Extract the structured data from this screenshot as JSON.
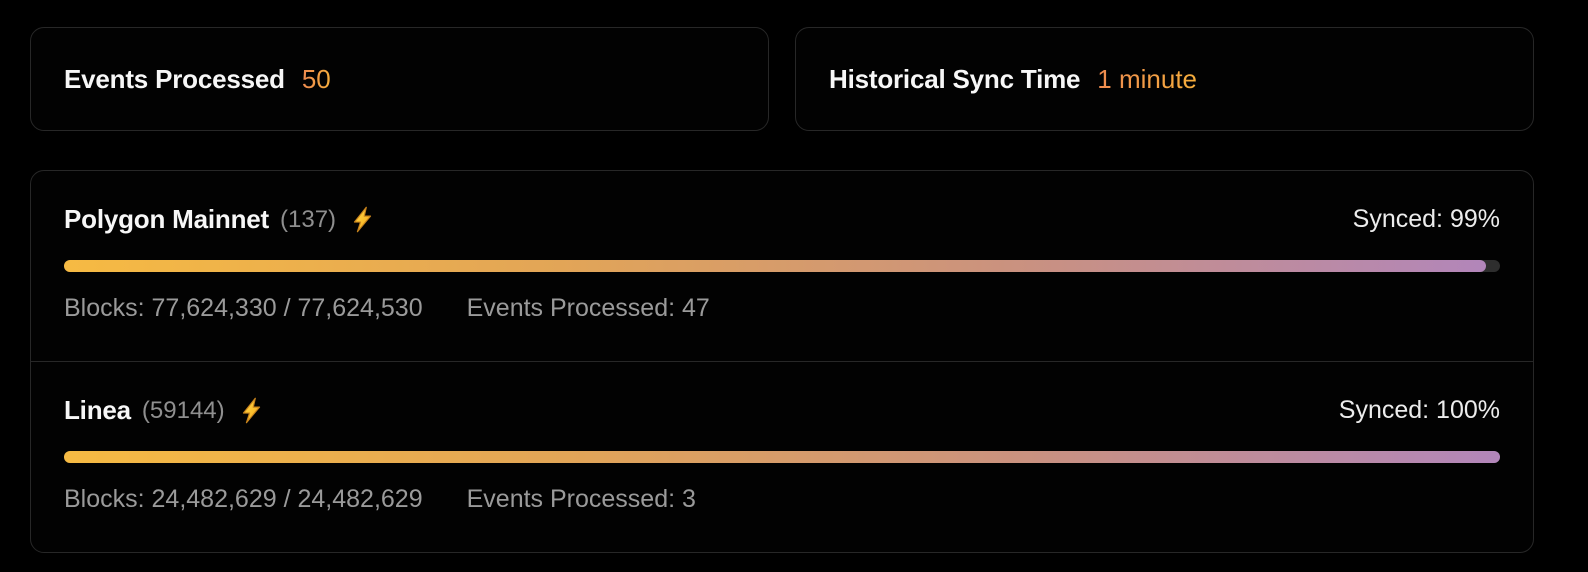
{
  "theme": {
    "background": "#000000",
    "card_border": "#272727",
    "accent_text_gradient": [
      "#ee8a50",
      "#f6ae3c"
    ],
    "progress_gradient": [
      "#f6ba43",
      "#e2a557",
      "#c99181",
      "#b286ba"
    ],
    "progress_track": "#2e2e2e",
    "primary_text": "#f7f7f7",
    "muted_text": "#9a9a9a"
  },
  "stats": [
    {
      "label": "Events Processed",
      "value": "50"
    },
    {
      "label": "Historical Sync Time",
      "value": "1 minute"
    }
  ],
  "networks": [
    {
      "name": "Polygon Mainnet",
      "chain_id": "(137)",
      "icon": "lightning-icon",
      "synced_label": "Synced: 99%",
      "progress_percent": 99,
      "blocks_label": "Blocks: 77,624,330 / 77,624,530",
      "events_label": "Events Processed: 47"
    },
    {
      "name": "Linea",
      "chain_id": "(59144)",
      "icon": "lightning-icon",
      "synced_label": "Synced: 100%",
      "progress_percent": 100,
      "blocks_label": "Blocks: 24,482,629 / 24,482,629",
      "events_label": "Events Processed: 3"
    }
  ]
}
